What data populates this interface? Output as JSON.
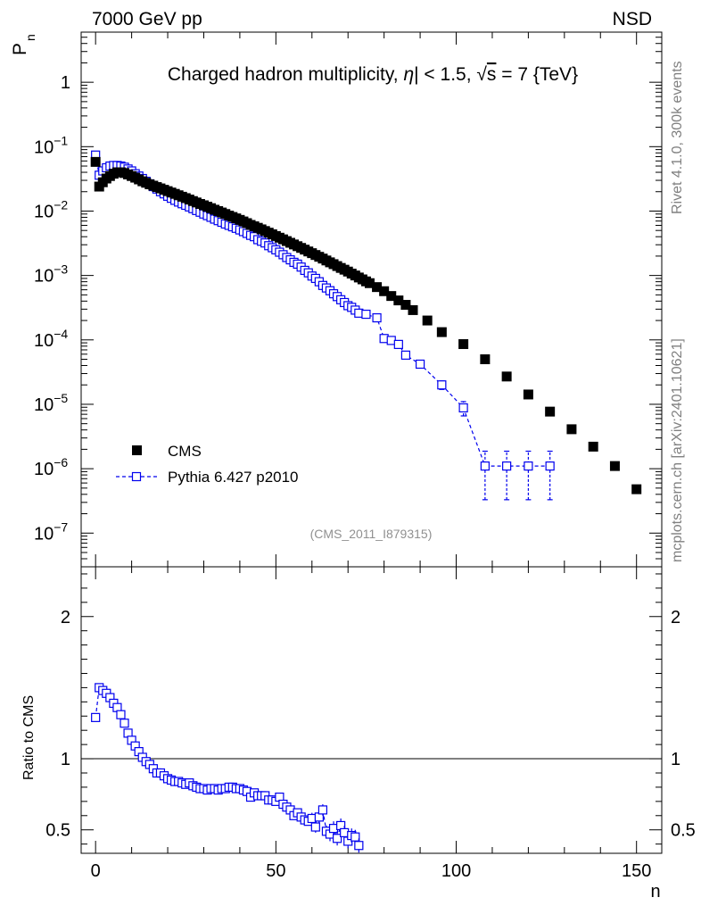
{
  "header": {
    "left": "7000 GeV pp",
    "right": "NSD"
  },
  "side_labels": {
    "rivet": "Rivet 4.1.0,  300k events",
    "mcplots": "mcplots.cern.ch [arXiv:2401.10621]"
  },
  "chart_data": [
    {
      "type": "scatter",
      "title": "Charged hadron multiplicity, |η| < 1.5, √s = 7 {TeV}",
      "title_prefix": "Charged hadron multiplicity, ",
      "title_eta": "η",
      "title_mid": "| < 1.5, ",
      "title_sqrt": "√",
      "title_s": "s",
      "title_suffix": " = 7 {TeV}",
      "ylabel": "P",
      "ylabel_sub": "n",
      "yscale": "log",
      "ylim": [
        3e-08,
        6
      ],
      "xlim": [
        -4,
        157
      ],
      "yticks": [
        {
          "value": 1e-07,
          "mant": "10",
          "exp": "−7"
        },
        {
          "value": 1e-06,
          "mant": "10",
          "exp": "−6"
        },
        {
          "value": 1e-05,
          "mant": "10",
          "exp": "−5"
        },
        {
          "value": 0.0001,
          "mant": "10",
          "exp": "−4"
        },
        {
          "value": 0.001,
          "mant": "10",
          "exp": "−3"
        },
        {
          "value": 0.01,
          "mant": "10",
          "exp": "−2"
        },
        {
          "value": 0.1,
          "mant": "10",
          "exp": "−1"
        },
        {
          "value": 1,
          "mant": "1",
          "exp": ""
        }
      ],
      "watermark": "(CMS_2011_I879315)",
      "legend": [
        {
          "name": "CMS",
          "marker": "filled-square",
          "color": "#000000"
        },
        {
          "name": "Pythia 6.427 p2010",
          "marker": "open-square-dashed",
          "color": "#0000ee"
        }
      ],
      "series": [
        {
          "name": "CMS",
          "x": [
            0,
            1,
            2,
            3,
            4,
            5,
            6,
            7,
            8,
            9,
            10,
            11,
            12,
            13,
            14,
            15,
            16,
            17,
            18,
            19,
            20,
            21,
            22,
            23,
            24,
            25,
            26,
            27,
            28,
            29,
            30,
            31,
            32,
            33,
            34,
            35,
            36,
            37,
            38,
            39,
            40,
            41,
            42,
            43,
            44,
            45,
            46,
            47,
            48,
            49,
            50,
            51,
            52,
            53,
            54,
            55,
            56,
            57,
            58,
            59,
            60,
            61,
            62,
            63,
            64,
            65,
            66,
            67,
            68,
            69,
            70,
            71,
            72,
            73,
            74,
            75,
            76,
            78,
            80,
            82,
            84,
            86,
            88,
            92,
            96,
            102,
            108,
            114,
            120,
            126,
            132,
            138,
            144,
            150
          ],
          "y": [
            0.058,
            0.024,
            0.028,
            0.032,
            0.035,
            0.038,
            0.04,
            0.04,
            0.039,
            0.037,
            0.035,
            0.033,
            0.031,
            0.029,
            0.0275,
            0.026,
            0.0248,
            0.0236,
            0.0225,
            0.0214,
            0.0204,
            0.0194,
            0.0185,
            0.0176,
            0.0167,
            0.0159,
            0.0151,
            0.0143,
            0.0136,
            0.0129,
            0.0123,
            0.0117,
            0.0111,
            0.0105,
            0.01,
            0.0095,
            0.009,
            0.0085,
            0.0081,
            0.0077,
            0.0073,
            0.0069,
            0.0065,
            0.0061,
            0.0058,
            0.0055,
            0.0052,
            0.0049,
            0.00462,
            0.00436,
            0.0041,
            0.00386,
            0.00364,
            0.00342,
            0.00322,
            0.00303,
            0.00285,
            0.00268,
            0.00252,
            0.00236,
            0.00222,
            0.00208,
            0.00195,
            0.00183,
            0.00171,
            0.0016,
            0.0015,
            0.0014,
            0.00131,
            0.00123,
            0.00115,
            0.00107,
            0.001,
            0.00093,
            0.00087,
            0.00081,
            0.00076,
            0.00066,
            0.00057,
            0.00048,
            0.00041,
            0.00035,
            0.00029,
            0.0002,
            0.000132,
            8.6e-05,
            5e-05,
            2.7e-05,
            1.42e-05,
            7.7e-06,
            4.1e-06,
            2.2e-06,
            1.1e-06,
            4.8e-07
          ]
        },
        {
          "name": "Pythia 6.427 p2010",
          "x": [
            0,
            1,
            2,
            3,
            4,
            5,
            6,
            7,
            8,
            9,
            10,
            11,
            12,
            13,
            14,
            15,
            16,
            17,
            18,
            19,
            20,
            21,
            22,
            23,
            24,
            25,
            26,
            27,
            28,
            29,
            30,
            31,
            32,
            33,
            34,
            35,
            36,
            37,
            38,
            39,
            40,
            41,
            42,
            43,
            44,
            45,
            46,
            47,
            48,
            49,
            50,
            51,
            52,
            53,
            54,
            55,
            56,
            57,
            58,
            59,
            60,
            61,
            62,
            63,
            64,
            65,
            66,
            67,
            68,
            69,
            70,
            71,
            72,
            73,
            75,
            78,
            80,
            82,
            84,
            86,
            90,
            96,
            102,
            108,
            114,
            120,
            126
          ],
          "y": [
            0.074,
            0.036,
            0.042,
            0.047,
            0.05,
            0.051,
            0.051,
            0.05,
            0.048,
            0.045,
            0.042,
            0.038,
            0.035,
            0.032,
            0.029,
            0.0265,
            0.024,
            0.022,
            0.02,
            0.0185,
            0.017,
            0.0158,
            0.0147,
            0.0138,
            0.013,
            0.0123,
            0.0116,
            0.0109,
            0.0102,
            0.0096,
            0.009,
            0.0085,
            0.008,
            0.0075,
            0.0071,
            0.0067,
            0.0063,
            0.006,
            0.0057,
            0.0054,
            0.0051,
            0.0048,
            0.0045,
            0.0042,
            0.004,
            0.0036,
            0.0034,
            0.0032,
            0.0029,
            0.0027,
            0.0025,
            0.0023,
            0.0021,
            0.0019,
            0.00175,
            0.0016,
            0.0015,
            0.00135,
            0.0012,
            0.0011,
            0.00098,
            0.0009,
            0.0008,
            0.0007,
            0.00064,
            0.00058,
            0.00052,
            0.00047,
            0.00042,
            0.00038,
            0.00034,
            0.00032,
            0.00029,
            0.00026,
            0.00025,
            0.00022,
            0.000105,
            9.8e-05,
            8.5e-05,
            5.8e-05,
            4.2e-05,
            2e-05,
            8.8e-06,
            1.1e-06,
            1.1e-06,
            1.1e-06,
            1.1e-06
          ],
          "yerr_rel": [
            0.01,
            0.01,
            0.01,
            0.01,
            0.01,
            0.01,
            0.01,
            0.01,
            0.01,
            0.01,
            0.01,
            0.01,
            0.01,
            0.01,
            0.01,
            0.01,
            0.01,
            0.01,
            0.01,
            0.01,
            0.01,
            0.01,
            0.01,
            0.01,
            0.01,
            0.01,
            0.01,
            0.01,
            0.01,
            0.01,
            0.01,
            0.01,
            0.01,
            0.01,
            0.01,
            0.01,
            0.01,
            0.01,
            0.01,
            0.01,
            0.01,
            0.01,
            0.01,
            0.01,
            0.01,
            0.01,
            0.02,
            0.02,
            0.02,
            0.02,
            0.02,
            0.02,
            0.02,
            0.02,
            0.02,
            0.02,
            0.03,
            0.03,
            0.03,
            0.03,
            0.03,
            0.03,
            0.03,
            0.04,
            0.04,
            0.04,
            0.04,
            0.04,
            0.05,
            0.05,
            0.05,
            0.05,
            0.05,
            0.06,
            0.06,
            0.06,
            0.08,
            0.08,
            0.08,
            0.1,
            0.1,
            0.15,
            0.25,
            0.7,
            0.7,
            0.7,
            0.7
          ]
        }
      ]
    },
    {
      "type": "scatter",
      "ylabel": "Ratio to CMS",
      "xlabel": "n",
      "yscale": "linear",
      "ylim": [
        0.335,
        2.35
      ],
      "xlim": [
        -4,
        157
      ],
      "yticks": [
        0.5,
        1,
        2
      ],
      "ytick_labels": [
        "0.5",
        "1",
        "2"
      ],
      "xticks": [
        0,
        50,
        100,
        150
      ],
      "xtick_labels": [
        "0",
        "50",
        "100",
        "150"
      ],
      "reference_line": 1,
      "series": [
        {
          "name": "Pythia 6.427 p2010 / CMS",
          "x": [
            0,
            1,
            2,
            3,
            4,
            5,
            6,
            7,
            8,
            9,
            10,
            11,
            12,
            13,
            14,
            15,
            16,
            17,
            18,
            19,
            20,
            21,
            22,
            23,
            24,
            25,
            26,
            27,
            28,
            29,
            30,
            31,
            32,
            33,
            34,
            35,
            36,
            37,
            38,
            39,
            40,
            41,
            42,
            43,
            44,
            45,
            46,
            47,
            48,
            49,
            50,
            51,
            52,
            53,
            54,
            55,
            56,
            57,
            58,
            59,
            60,
            61,
            62,
            63,
            64,
            65,
            66,
            67,
            68,
            69,
            70,
            71,
            72,
            73
          ],
          "y": [
            1.29,
            1.5,
            1.48,
            1.46,
            1.43,
            1.39,
            1.36,
            1.31,
            1.25,
            1.18,
            1.13,
            1.09,
            1.05,
            1.01,
            0.98,
            0.96,
            0.93,
            0.9,
            0.9,
            0.88,
            0.86,
            0.85,
            0.84,
            0.84,
            0.83,
            0.82,
            0.83,
            0.81,
            0.8,
            0.79,
            0.79,
            0.78,
            0.79,
            0.79,
            0.78,
            0.79,
            0.79,
            0.8,
            0.8,
            0.79,
            0.79,
            0.78,
            0.77,
            0.73,
            0.76,
            0.74,
            0.74,
            0.74,
            0.71,
            0.71,
            0.7,
            0.73,
            0.68,
            0.66,
            0.64,
            0.6,
            0.62,
            0.59,
            0.57,
            0.56,
            0.58,
            0.52,
            0.59,
            0.64,
            0.49,
            0.47,
            0.51,
            0.44,
            0.53,
            0.48,
            0.42,
            0.46,
            0.45,
            0.39
          ],
          "yerr": [
            0.01,
            0.01,
            0.01,
            0.01,
            0.01,
            0.01,
            0.01,
            0.01,
            0.01,
            0.01,
            0.01,
            0.01,
            0.01,
            0.01,
            0.01,
            0.01,
            0.01,
            0.01,
            0.01,
            0.01,
            0.01,
            0.01,
            0.01,
            0.01,
            0.01,
            0.01,
            0.01,
            0.01,
            0.01,
            0.01,
            0.01,
            0.01,
            0.01,
            0.01,
            0.01,
            0.01,
            0.01,
            0.01,
            0.01,
            0.01,
            0.01,
            0.01,
            0.01,
            0.01,
            0.02,
            0.02,
            0.02,
            0.02,
            0.02,
            0.02,
            0.02,
            0.02,
            0.02,
            0.02,
            0.03,
            0.03,
            0.03,
            0.03,
            0.03,
            0.03,
            0.04,
            0.04,
            0.04,
            0.04,
            0.04,
            0.05,
            0.05,
            0.05,
            0.05,
            0.05,
            0.05,
            0.05,
            0.05,
            0.05
          ]
        }
      ]
    }
  ]
}
